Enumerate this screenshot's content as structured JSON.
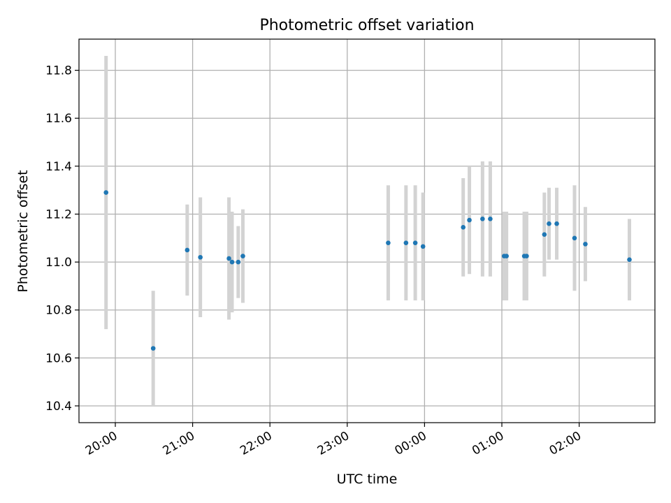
{
  "chart_data": {
    "type": "scatter",
    "title": "Photometric offset variation",
    "xlabel": "UTC time",
    "ylabel": "Photometric offset",
    "x_tick_labels": [
      "20:00",
      "21:00",
      "22:00",
      "23:00",
      "00:00",
      "01:00",
      "02:00"
    ],
    "y_tick_labels": [
      "10.4",
      "10.6",
      "10.8",
      "11.0",
      "11.2",
      "11.4",
      "11.6",
      "11.8"
    ],
    "x_ticks_hours": [
      20,
      21,
      22,
      23,
      24,
      25,
      26
    ],
    "y_ticks": [
      10.4,
      10.6,
      10.8,
      11.0,
      11.2,
      11.4,
      11.6,
      11.8
    ],
    "xlim_hours": [
      19.53,
      26.98
    ],
    "ylim": [
      10.33,
      11.93
    ],
    "grid": true,
    "colors": {
      "point": "#1f77b4",
      "errorbar": "#d3d3d3",
      "grid": "#b0b0b0"
    },
    "series": [
      {
        "points": [
          {
            "t": 19.88,
            "y": 11.29,
            "ylo": 10.72,
            "yhi": 11.86
          },
          {
            "t": 20.49,
            "y": 10.64,
            "ylo": 10.4,
            "yhi": 10.88
          },
          {
            "t": 20.93,
            "y": 11.05,
            "ylo": 10.86,
            "yhi": 11.24
          },
          {
            "t": 21.1,
            "y": 11.02,
            "ylo": 10.77,
            "yhi": 11.27
          },
          {
            "t": 21.47,
            "y": 11.015,
            "ylo": 10.76,
            "yhi": 11.27
          },
          {
            "t": 21.51,
            "y": 11.0,
            "ylo": 10.79,
            "yhi": 11.21
          },
          {
            "t": 21.59,
            "y": 11.0,
            "ylo": 10.85,
            "yhi": 11.15
          },
          {
            "t": 21.65,
            "y": 11.025,
            "ylo": 10.83,
            "yhi": 11.22
          },
          {
            "t": 23.53,
            "y": 11.08,
            "ylo": 10.84,
            "yhi": 11.32
          },
          {
            "t": 23.76,
            "y": 11.08,
            "ylo": 10.84,
            "yhi": 11.32
          },
          {
            "t": 23.88,
            "y": 11.08,
            "ylo": 10.84,
            "yhi": 11.32
          },
          {
            "t": 23.98,
            "y": 11.065,
            "ylo": 10.84,
            "yhi": 11.29
          },
          {
            "t": 24.5,
            "y": 11.145,
            "ylo": 10.94,
            "yhi": 11.35
          },
          {
            "t": 24.58,
            "y": 11.175,
            "ylo": 10.95,
            "yhi": 11.4
          },
          {
            "t": 24.75,
            "y": 11.18,
            "ylo": 10.94,
            "yhi": 11.42
          },
          {
            "t": 24.85,
            "y": 11.18,
            "ylo": 10.94,
            "yhi": 11.42
          },
          {
            "t": 25.03,
            "y": 11.025,
            "ylo": 10.84,
            "yhi": 11.21
          },
          {
            "t": 25.06,
            "y": 11.025,
            "ylo": 10.84,
            "yhi": 11.21
          },
          {
            "t": 25.29,
            "y": 11.025,
            "ylo": 10.84,
            "yhi": 11.21
          },
          {
            "t": 25.32,
            "y": 11.025,
            "ylo": 10.84,
            "yhi": 11.21
          },
          {
            "t": 25.55,
            "y": 11.115,
            "ylo": 10.94,
            "yhi": 11.29
          },
          {
            "t": 25.61,
            "y": 11.16,
            "ylo": 11.01,
            "yhi": 11.31
          },
          {
            "t": 25.71,
            "y": 11.16,
            "ylo": 11.01,
            "yhi": 11.31
          },
          {
            "t": 25.94,
            "y": 11.1,
            "ylo": 10.88,
            "yhi": 11.32
          },
          {
            "t": 26.08,
            "y": 11.075,
            "ylo": 10.92,
            "yhi": 11.23
          },
          {
            "t": 26.65,
            "y": 11.01,
            "ylo": 10.84,
            "yhi": 11.18
          }
        ]
      }
    ]
  }
}
